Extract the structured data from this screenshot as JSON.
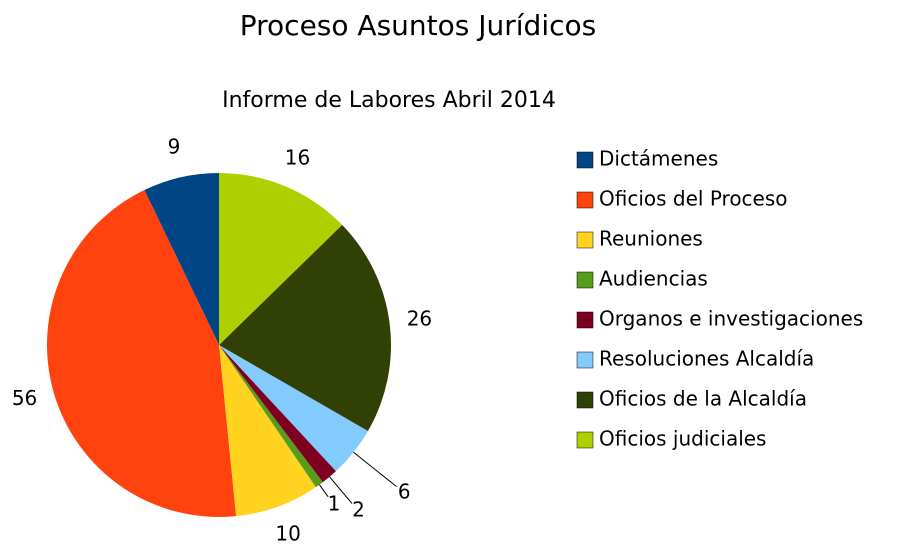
{
  "chart_data": {
    "type": "pie",
    "title": "Proceso Asuntos Jurídicos",
    "subtitle": "Informe de Labores Abril 2014",
    "categories": [
      "Dictámenes",
      "Oficios del Proceso",
      "Reuniones",
      "Audiencias",
      "Organos e investigaciones",
      "Resoluciones Alcaldía",
      "Oficios de la Alcaldía",
      "Oficios judiciales"
    ],
    "values": [
      9,
      56,
      10,
      1,
      2,
      6,
      26,
      16
    ],
    "colors": [
      "#004586",
      "#ff420e",
      "#ffd320",
      "#579d1c",
      "#7e0021",
      "#83caff",
      "#314004",
      "#aecf00"
    ],
    "legend": "right"
  }
}
